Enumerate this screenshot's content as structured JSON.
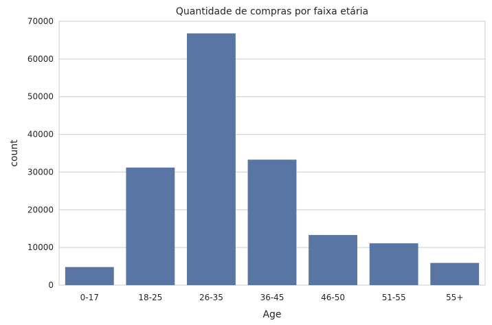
{
  "chart_data": {
    "type": "bar",
    "title": "Quantidade de compras por faixa etária",
    "xlabel": "Age",
    "ylabel": "count",
    "categories": [
      "0-17",
      "18-25",
      "26-35",
      "36-45",
      "46-50",
      "51-55",
      "55+"
    ],
    "values": [
      4800,
      31200,
      66800,
      33300,
      13300,
      11100,
      5900
    ],
    "ylim": [
      0,
      70000
    ],
    "yticks": [
      0,
      10000,
      20000,
      30000,
      40000,
      50000,
      60000,
      70000
    ],
    "grid": true,
    "bar_color": "#5875a4"
  }
}
